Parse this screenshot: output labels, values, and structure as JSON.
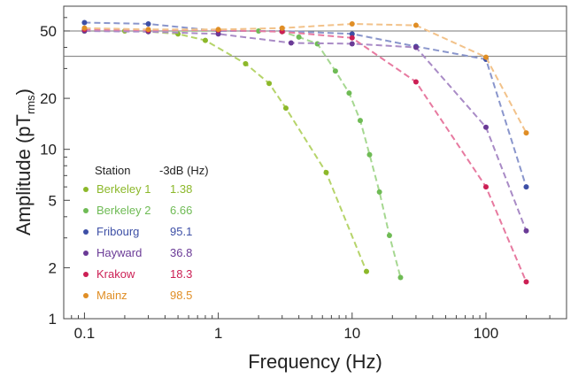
{
  "chart_data": {
    "type": "line",
    "xlabel": "Frequency (Hz)",
    "ylabel": {
      "main": "Amplitude (pT",
      "sub": "rms",
      "close": ")"
    },
    "x_scale": "log",
    "y_scale": "log",
    "xlim": [
      0.07,
      400
    ],
    "ylim": [
      1,
      70
    ],
    "x_ticks": [
      {
        "value": 0.1,
        "label": "0.1"
      },
      {
        "value": 1,
        "label": "1"
      },
      {
        "value": 10,
        "label": "10"
      },
      {
        "value": 100,
        "label": "100"
      }
    ],
    "y_ticks": [
      {
        "value": 1,
        "label": "1"
      },
      {
        "value": 2,
        "label": "2"
      },
      {
        "value": 5,
        "label": "5"
      },
      {
        "value": 10,
        "label": "10"
      },
      {
        "value": 20,
        "label": "20"
      },
      {
        "value": 50,
        "label": "50"
      }
    ],
    "reference_lines": [
      50,
      35.4
    ],
    "legend": {
      "header_station": "Station",
      "header_cutoff": "-3dB (Hz)",
      "placement": "lower-left"
    },
    "series": [
      {
        "name": "Berkeley 1",
        "cutoff": "1.38",
        "color": "#8cb82a",
        "line_color": "#b6d46a",
        "x": [
          0.1,
          0.2,
          0.3,
          0.5,
          0.8,
          1.6,
          2.4,
          3.2,
          6.4,
          12.8
        ],
        "y": [
          50,
          50,
          49.5,
          48,
          44,
          32,
          24.5,
          17.5,
          7.3,
          1.9
        ]
      },
      {
        "name": "Berkeley 2",
        "cutoff": "6.66",
        "color": "#6fbb55",
        "line_color": "#a6d891",
        "x": [
          0.1,
          0.3,
          1,
          2,
          3,
          4,
          5.5,
          7.5,
          9.5,
          11.5,
          13.5,
          16,
          19,
          23
        ],
        "y": [
          50,
          50,
          50,
          50,
          49.5,
          46,
          42,
          29,
          21.5,
          14.8,
          9.3,
          5.6,
          3.1,
          1.75
        ]
      },
      {
        "name": "Fribourg",
        "cutoff": "95.1",
        "color": "#3d4fa6",
        "line_color": "#8a96cc",
        "x": [
          0.1,
          0.3,
          1,
          3,
          10,
          30,
          100,
          200
        ],
        "y": [
          56,
          55,
          50,
          50,
          48,
          40.5,
          34,
          6
        ]
      },
      {
        "name": "Hayward",
        "cutoff": "36.8",
        "color": "#6a3a96",
        "line_color": "#a98bc6",
        "x": [
          0.1,
          0.3,
          1,
          3.5,
          10,
          30,
          100,
          200
        ],
        "y": [
          50,
          49.5,
          48,
          42.5,
          42,
          40,
          13.5,
          3.3
        ]
      },
      {
        "name": "Krakow",
        "cutoff": "18.3",
        "color": "#cc1f54",
        "line_color": "#e77aa0",
        "x": [
          0.1,
          0.3,
          1,
          3,
          10,
          30,
          100,
          200
        ],
        "y": [
          51,
          50.5,
          50.5,
          49.5,
          45.5,
          25,
          6,
          1.65
        ]
      },
      {
        "name": "Mainz",
        "cutoff": "98.5",
        "color": "#e08e25",
        "line_color": "#f2c28a",
        "x": [
          0.1,
          0.3,
          1,
          3,
          10,
          30,
          100,
          200
        ],
        "y": [
          52,
          51,
          51,
          52,
          55,
          54,
          35,
          12.5
        ]
      }
    ]
  }
}
